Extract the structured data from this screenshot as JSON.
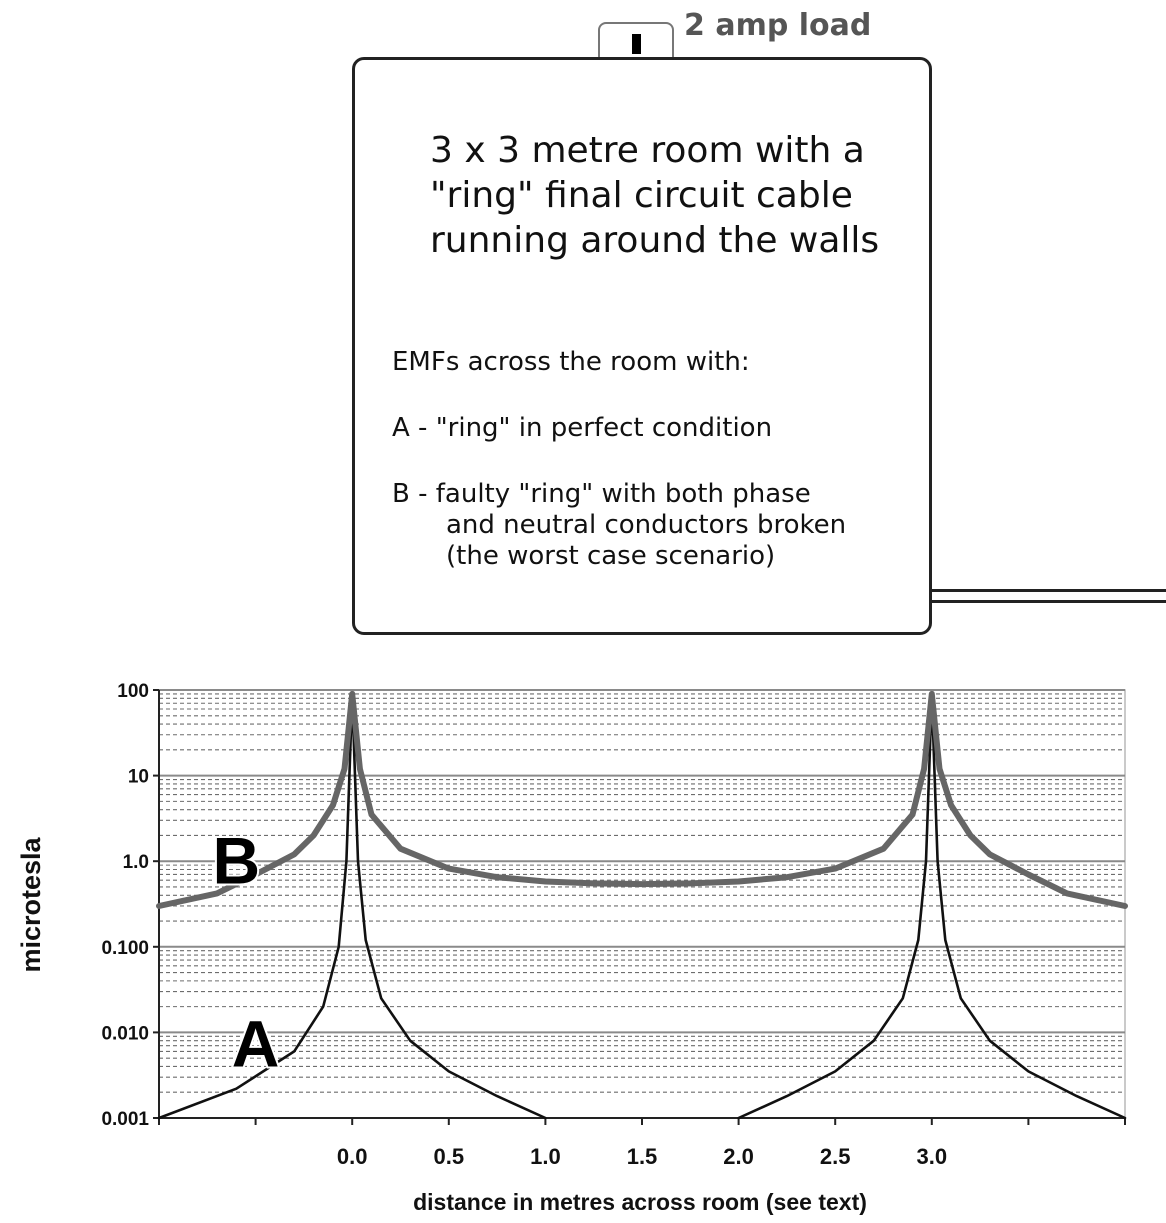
{
  "socket": {
    "label": "2 amp load"
  },
  "room_box": {
    "title": "3 x 3 metre room with a \"ring\" final circuit cable running around the walls",
    "intro": "EMFs across the room with:",
    "case_a": "A - \"ring\" in perfect condition",
    "case_b_line1": "B - faulty \"ring\" with both phase",
    "case_b_line2": "and neutral conductors broken",
    "case_b_line3": "(the worst case scenario)"
  },
  "chart_data": {
    "type": "line",
    "xlabel": "distance in metres across room (see text)",
    "ylabel": "microtesla",
    "x_scale": "linear",
    "y_scale": "log",
    "xlim": [
      -1.0,
      4.0
    ],
    "ylim": [
      0.001,
      100
    ],
    "x_tick_labels": [
      "0.0",
      "0.5",
      "1.0",
      "1.5",
      "2.0",
      "2.5",
      "3.0"
    ],
    "x_tick_values": [
      0.0,
      0.5,
      1.0,
      1.5,
      2.0,
      2.5,
      3.0
    ],
    "y_tick_labels": [
      "100",
      "10",
      "1.0",
      "0.100",
      "0.010",
      "0.001"
    ],
    "y_tick_values": [
      100,
      10,
      1,
      0.1,
      0.01,
      0.001
    ],
    "grid": true,
    "series": [
      {
        "name": "A",
        "color": "#111111",
        "points": [
          [
            -1.0,
            0.001
          ],
          [
            -0.6,
            0.0022
          ],
          [
            -0.3,
            0.006
          ],
          [
            -0.15,
            0.02
          ],
          [
            -0.07,
            0.1
          ],
          [
            -0.03,
            1.0
          ],
          [
            -0.01,
            20
          ],
          [
            0.0,
            90
          ],
          [
            0.01,
            20
          ],
          [
            0.03,
            1.0
          ],
          [
            0.07,
            0.12
          ],
          [
            0.15,
            0.025
          ],
          [
            0.3,
            0.008
          ],
          [
            0.5,
            0.0035
          ],
          [
            0.75,
            0.0018
          ],
          [
            1.0,
            0.001
          ]
        ]
      },
      {
        "name": "A",
        "color": "#111111",
        "points": [
          [
            2.0,
            0.001
          ],
          [
            2.25,
            0.0018
          ],
          [
            2.5,
            0.0035
          ],
          [
            2.7,
            0.008
          ],
          [
            2.85,
            0.025
          ],
          [
            2.93,
            0.12
          ],
          [
            2.97,
            1.0
          ],
          [
            2.99,
            20
          ],
          [
            3.0,
            90
          ],
          [
            3.01,
            20
          ],
          [
            3.03,
            1.0
          ],
          [
            3.07,
            0.12
          ],
          [
            3.15,
            0.025
          ],
          [
            3.3,
            0.008
          ],
          [
            3.5,
            0.0035
          ],
          [
            3.75,
            0.0018
          ],
          [
            4.0,
            0.001
          ]
        ]
      },
      {
        "name": "B",
        "color": "#666666",
        "points": [
          [
            -1.0,
            0.3
          ],
          [
            -0.7,
            0.42
          ],
          [
            -0.5,
            0.7
          ],
          [
            -0.3,
            1.2
          ],
          [
            -0.2,
            2.0
          ],
          [
            -0.1,
            4.5
          ],
          [
            -0.04,
            12
          ],
          [
            0.0,
            90
          ],
          [
            0.04,
            12
          ],
          [
            0.1,
            3.5
          ],
          [
            0.25,
            1.4
          ],
          [
            0.5,
            0.82
          ],
          [
            0.75,
            0.65
          ],
          [
            1.0,
            0.58
          ],
          [
            1.25,
            0.55
          ],
          [
            1.5,
            0.54
          ],
          [
            1.75,
            0.55
          ],
          [
            2.0,
            0.58
          ],
          [
            2.25,
            0.65
          ],
          [
            2.5,
            0.82
          ],
          [
            2.75,
            1.4
          ],
          [
            2.9,
            3.5
          ],
          [
            2.96,
            12
          ],
          [
            3.0,
            90
          ],
          [
            3.04,
            12
          ],
          [
            3.1,
            4.5
          ],
          [
            3.2,
            2.0
          ],
          [
            3.3,
            1.2
          ],
          [
            3.5,
            0.7
          ],
          [
            3.7,
            0.42
          ],
          [
            4.0,
            0.3
          ]
        ]
      }
    ],
    "annotations": [
      {
        "text": "A",
        "x": -0.5,
        "y": 0.004
      },
      {
        "text": "B",
        "x": -0.6,
        "y": 0.55
      }
    ]
  }
}
